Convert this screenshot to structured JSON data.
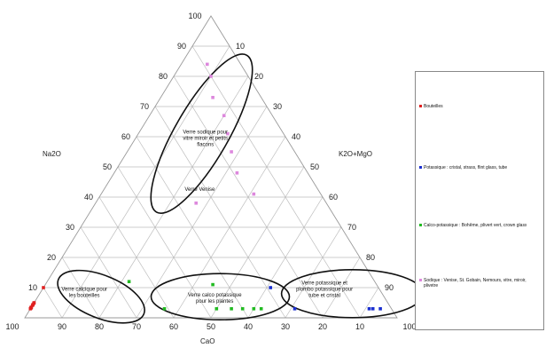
{
  "chart_data": {
    "type": "ternary-scatter",
    "axes": {
      "left": "Na2O",
      "right": "K2O+MgO",
      "bottom": "CaO"
    },
    "tick_labels": [
      "10",
      "20",
      "30",
      "40",
      "50",
      "60",
      "70",
      "80",
      "90",
      "100"
    ],
    "tick_labels_bottom": [
      "100",
      "90",
      "80",
      "70",
      "60",
      "50",
      "40",
      "30",
      "20",
      "10",
      "100"
    ],
    "grid": true,
    "legend_position": "right",
    "colors": {
      "Bouteilles": "#e02020",
      "Potassique": "#1a2fd0",
      "Calco-potassique": "#22bb22",
      "Sodique": "#dd88dd"
    },
    "series": [
      {
        "name": "Bouteilles",
        "color": "#e02020",
        "points": [
          [
            10,
            90,
            0
          ],
          [
            3,
            97,
            0
          ],
          [
            5,
            95,
            0
          ],
          [
            3,
            84,
            0
          ],
          [
            3,
            82,
            0
          ],
          [
            3,
            92,
            0
          ],
          [
            3,
            86,
            0
          ],
          [
            3,
            70,
            0
          ],
          [
            3,
            65,
            0
          ],
          [
            3,
            59,
            0
          ]
        ]
      },
      {
        "name": "Potassique : cristal, strass, flint glass, tube",
        "color": "#1a2fd0",
        "points": [
          [
            3,
            3,
            94
          ],
          [
            3,
            26,
            71
          ],
          [
            3,
            5,
            92
          ],
          [
            3,
            6,
            91
          ],
          [
            10,
            29,
            61
          ]
        ]
      },
      {
        "name": "Calco-potassique : Bohême, plivert vert, crown glass",
        "color": "#22bb22",
        "points": [
          [
            3,
            47,
            50
          ],
          [
            3,
            37,
            60
          ],
          [
            3,
            35,
            62
          ],
          [
            3,
            40,
            57
          ],
          [
            11,
            44,
            45
          ],
          [
            12,
            66,
            22
          ],
          [
            3,
            43,
            54
          ],
          [
            3,
            61,
            36
          ]
        ]
      },
      {
        "name": "Sodique : Venise, St. Gobain, Nemours, vitre, miroir, plivetre",
        "color": "#dd88dd",
        "points": [
          [
            41,
            18,
            41
          ],
          [
            48,
            19,
            33
          ],
          [
            55,
            17,
            28
          ],
          [
            61,
            15,
            24
          ],
          [
            67,
            13,
            20
          ],
          [
            73,
            13,
            14
          ],
          [
            80,
            10,
            10
          ],
          [
            84,
            9,
            7
          ],
          [
            38,
            35,
            27
          ]
        ]
      }
    ],
    "annotations": [
      [
        "Verre sodique pour",
        "vitre miroir et petits",
        "flacons"
      ],
      [
        "Verre Venise"
      ],
      [
        "Verre calcique pour",
        "les  bouteilles"
      ],
      [
        "Verre calco potassique",
        "pour les  plantes"
      ],
      [
        "Verre potassique et",
        "plombo potassique pour",
        "tube et cristal"
      ]
    ]
  }
}
